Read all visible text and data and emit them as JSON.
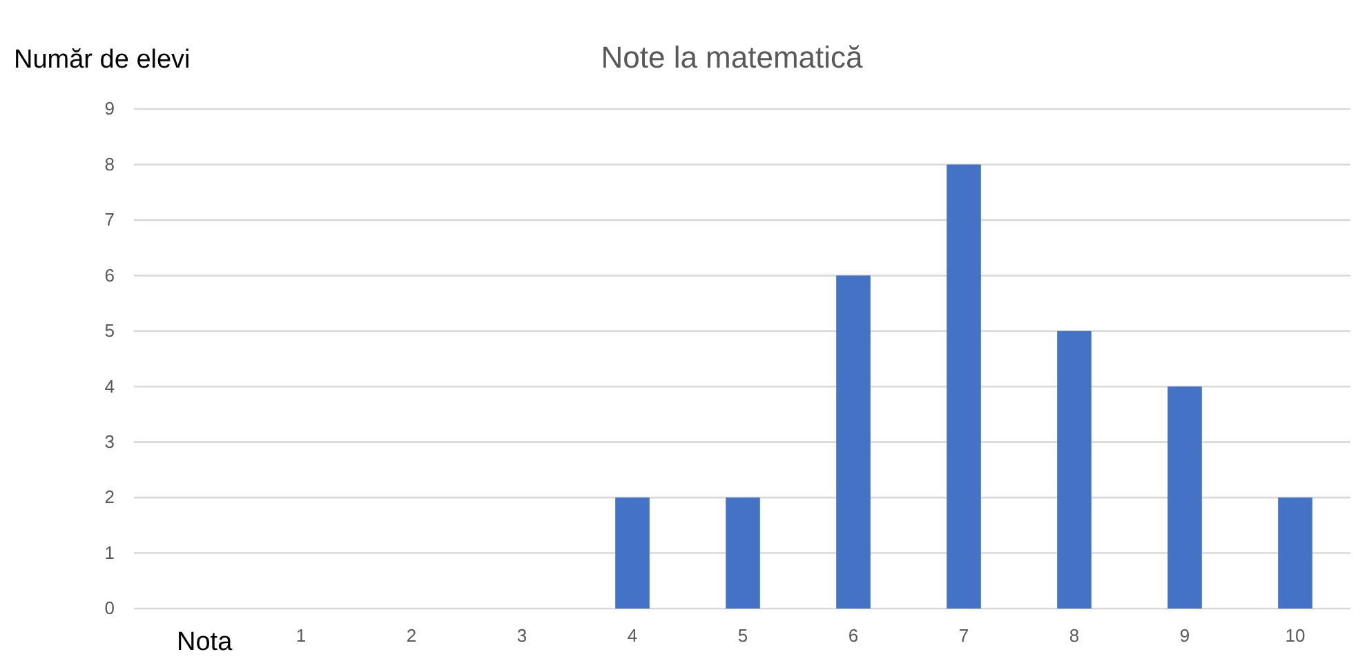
{
  "chart_data": {
    "type": "bar",
    "title": "Note la matematică",
    "xlabel": "Nota",
    "ylabel": "Număr de elevi",
    "categories": [
      "1",
      "2",
      "3",
      "4",
      "5",
      "6",
      "7",
      "8",
      "9",
      "10"
    ],
    "values": [
      0,
      0,
      0,
      2,
      2,
      6,
      8,
      5,
      4,
      2
    ],
    "color": "#4472c4",
    "ylim": [
      0,
      9
    ],
    "yticks": [
      0,
      1,
      2,
      3,
      4,
      5,
      6,
      7,
      8,
      9
    ],
    "grid": "y"
  }
}
